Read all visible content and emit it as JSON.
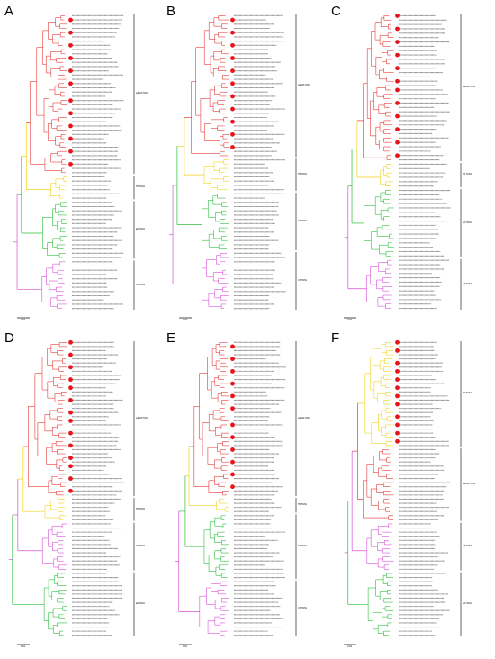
{
  "figure": {
    "panels": [
      {
        "letter": "A",
        "scale_text": "0.02",
        "clades": [
          {
            "name": "pdm09 H1N1",
            "color": "#e53935",
            "tips": 38,
            "marked": 12
          },
          {
            "name": "TR H1N1",
            "color": "#f2d21c",
            "tips": 6,
            "marked": 0
          },
          {
            "name": "EA H1N1",
            "color": "#2bbf3a",
            "tips": 14,
            "marked": 0
          },
          {
            "name": "CS H1N1",
            "color": "#d84fd8",
            "tips": 12,
            "marked": 0
          }
        ]
      },
      {
        "letter": "B",
        "scale_text": "0.02",
        "clades": [
          {
            "name": "pdm09 H1N1",
            "color": "#e53935",
            "tips": 34,
            "marked": 11
          },
          {
            "name": "TR H1N1",
            "color": "#f2d21c",
            "tips": 8,
            "marked": 0
          },
          {
            "name": "EA H1N1",
            "color": "#2bbf3a",
            "tips": 14,
            "marked": 0
          },
          {
            "name": "CS H1N1",
            "color": "#d84fd8",
            "tips": 14,
            "marked": 0
          }
        ]
      },
      {
        "letter": "C",
        "scale_text": "0.02",
        "clades": [
          {
            "name": "pdm09 H1N1",
            "color": "#e53935",
            "tips": 34,
            "marked": 12
          },
          {
            "name": "TR H1N1",
            "color": "#f2d21c",
            "tips": 6,
            "marked": 0
          },
          {
            "name": "EA H1N1",
            "color": "#2bbf3a",
            "tips": 16,
            "marked": 0
          },
          {
            "name": "CS H1N1",
            "color": "#d84fd8",
            "tips": 12,
            "marked": 0
          }
        ]
      },
      {
        "letter": "D",
        "scale_text": "0.02",
        "clades": [
          {
            "name": "pdm09 H1N1",
            "color": "#e53935",
            "tips": 38,
            "marked": 14
          },
          {
            "name": "TR H1N1",
            "color": "#f2d21c",
            "tips": 6,
            "marked": 0
          },
          {
            "name": "CS H1N1",
            "color": "#d84fd8",
            "tips": 12,
            "marked": 0
          },
          {
            "name": "EA H1N1",
            "color": "#2bbf3a",
            "tips": 16,
            "marked": 0
          }
        ]
      },
      {
        "letter": "E",
        "scale_text": "0.01",
        "clades": [
          {
            "name": "pdm09 H1N1",
            "color": "#e53935",
            "tips": 38,
            "marked": 12
          },
          {
            "name": "TR H1N1",
            "color": "#f2d21c",
            "tips": 4,
            "marked": 0
          },
          {
            "name": "EA H1N1",
            "color": "#2bbf3a",
            "tips": 16,
            "marked": 0
          },
          {
            "name": "CS H1N1",
            "color": "#d84fd8",
            "tips": 14,
            "marked": 0
          }
        ]
      },
      {
        "letter": "F",
        "scale_text": "0.02",
        "clades": [
          {
            "name": "TR H1N1",
            "color": "#f2d21c",
            "tips": 26,
            "marked": 12
          },
          {
            "name": "pdm09 H1N1",
            "color": "#e53935",
            "tips": 18,
            "marked": 0
          },
          {
            "name": "CS H1N1",
            "color": "#d84fd8",
            "tips": 12,
            "marked": 0
          },
          {
            "name": "EA H1N1",
            "color": "#2bbf3a",
            "tips": 16,
            "marked": 0
          }
        ]
      }
    ]
  }
}
